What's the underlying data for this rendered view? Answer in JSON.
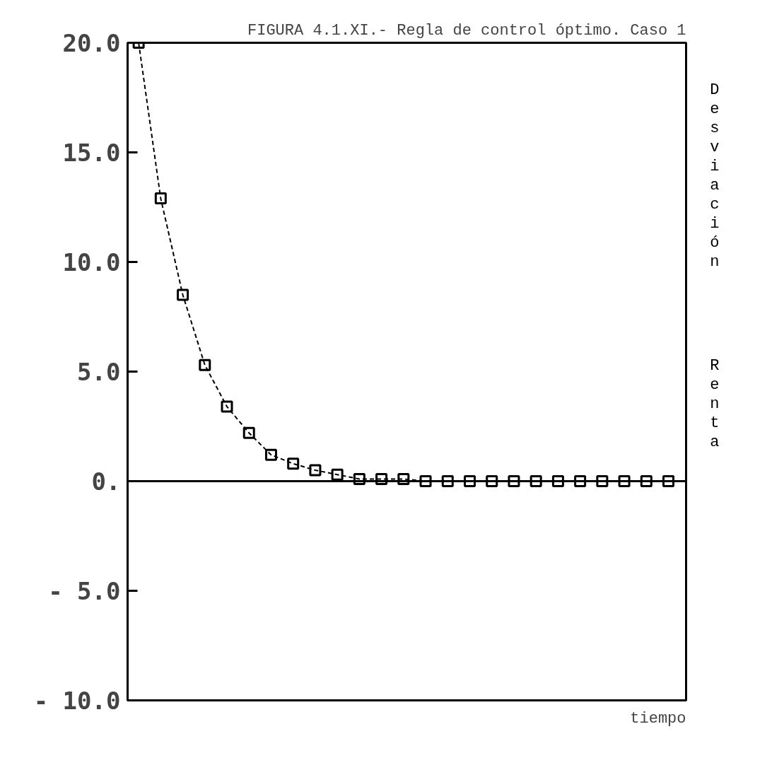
{
  "chart_data": {
    "type": "line",
    "title": "FIGURA 4.1.XI.- Regla de control óptimo. Caso 1",
    "xlabel": "tiempo",
    "categories": [
      null,
      null,
      null,
      null,
      null,
      null,
      null,
      null,
      null,
      null,
      null,
      null,
      null,
      null,
      null,
      null,
      null,
      null,
      null,
      null,
      null,
      null,
      null,
      null,
      null
    ],
    "series": [
      {
        "color": "#000000",
        "values": [
          20,
          12.9,
          8.5,
          5.3,
          3.4,
          2.2,
          1.2,
          0.8,
          0.5,
          0.3,
          0.1,
          0.1,
          0.1,
          0,
          0,
          0,
          0,
          0,
          0,
          0,
          0,
          0,
          0,
          0,
          0
        ]
      }
    ],
    "ylim": [
      -10,
      20
    ],
    "yticks": [
      {
        "value": 20,
        "label": "20.0"
      },
      {
        "value": 15,
        "label": "15.0"
      },
      {
        "value": 10,
        "label": "10.0"
      },
      {
        "value": 5,
        "label": "5.0"
      },
      {
        "value": 0,
        "label": "0."
      },
      {
        "value": -5,
        "label": "- 5.0"
      },
      {
        "value": -10,
        "label": "- 10.0"
      }
    ],
    "ref_lines": [
      {
        "axis": "y",
        "value": 0,
        "color": "#000000",
        "line_style": "solid"
      }
    ],
    "annotations": [
      "Desviación",
      "Renta"
    ],
    "marker": "square",
    "line_style": "dashed",
    "grid": false
  }
}
